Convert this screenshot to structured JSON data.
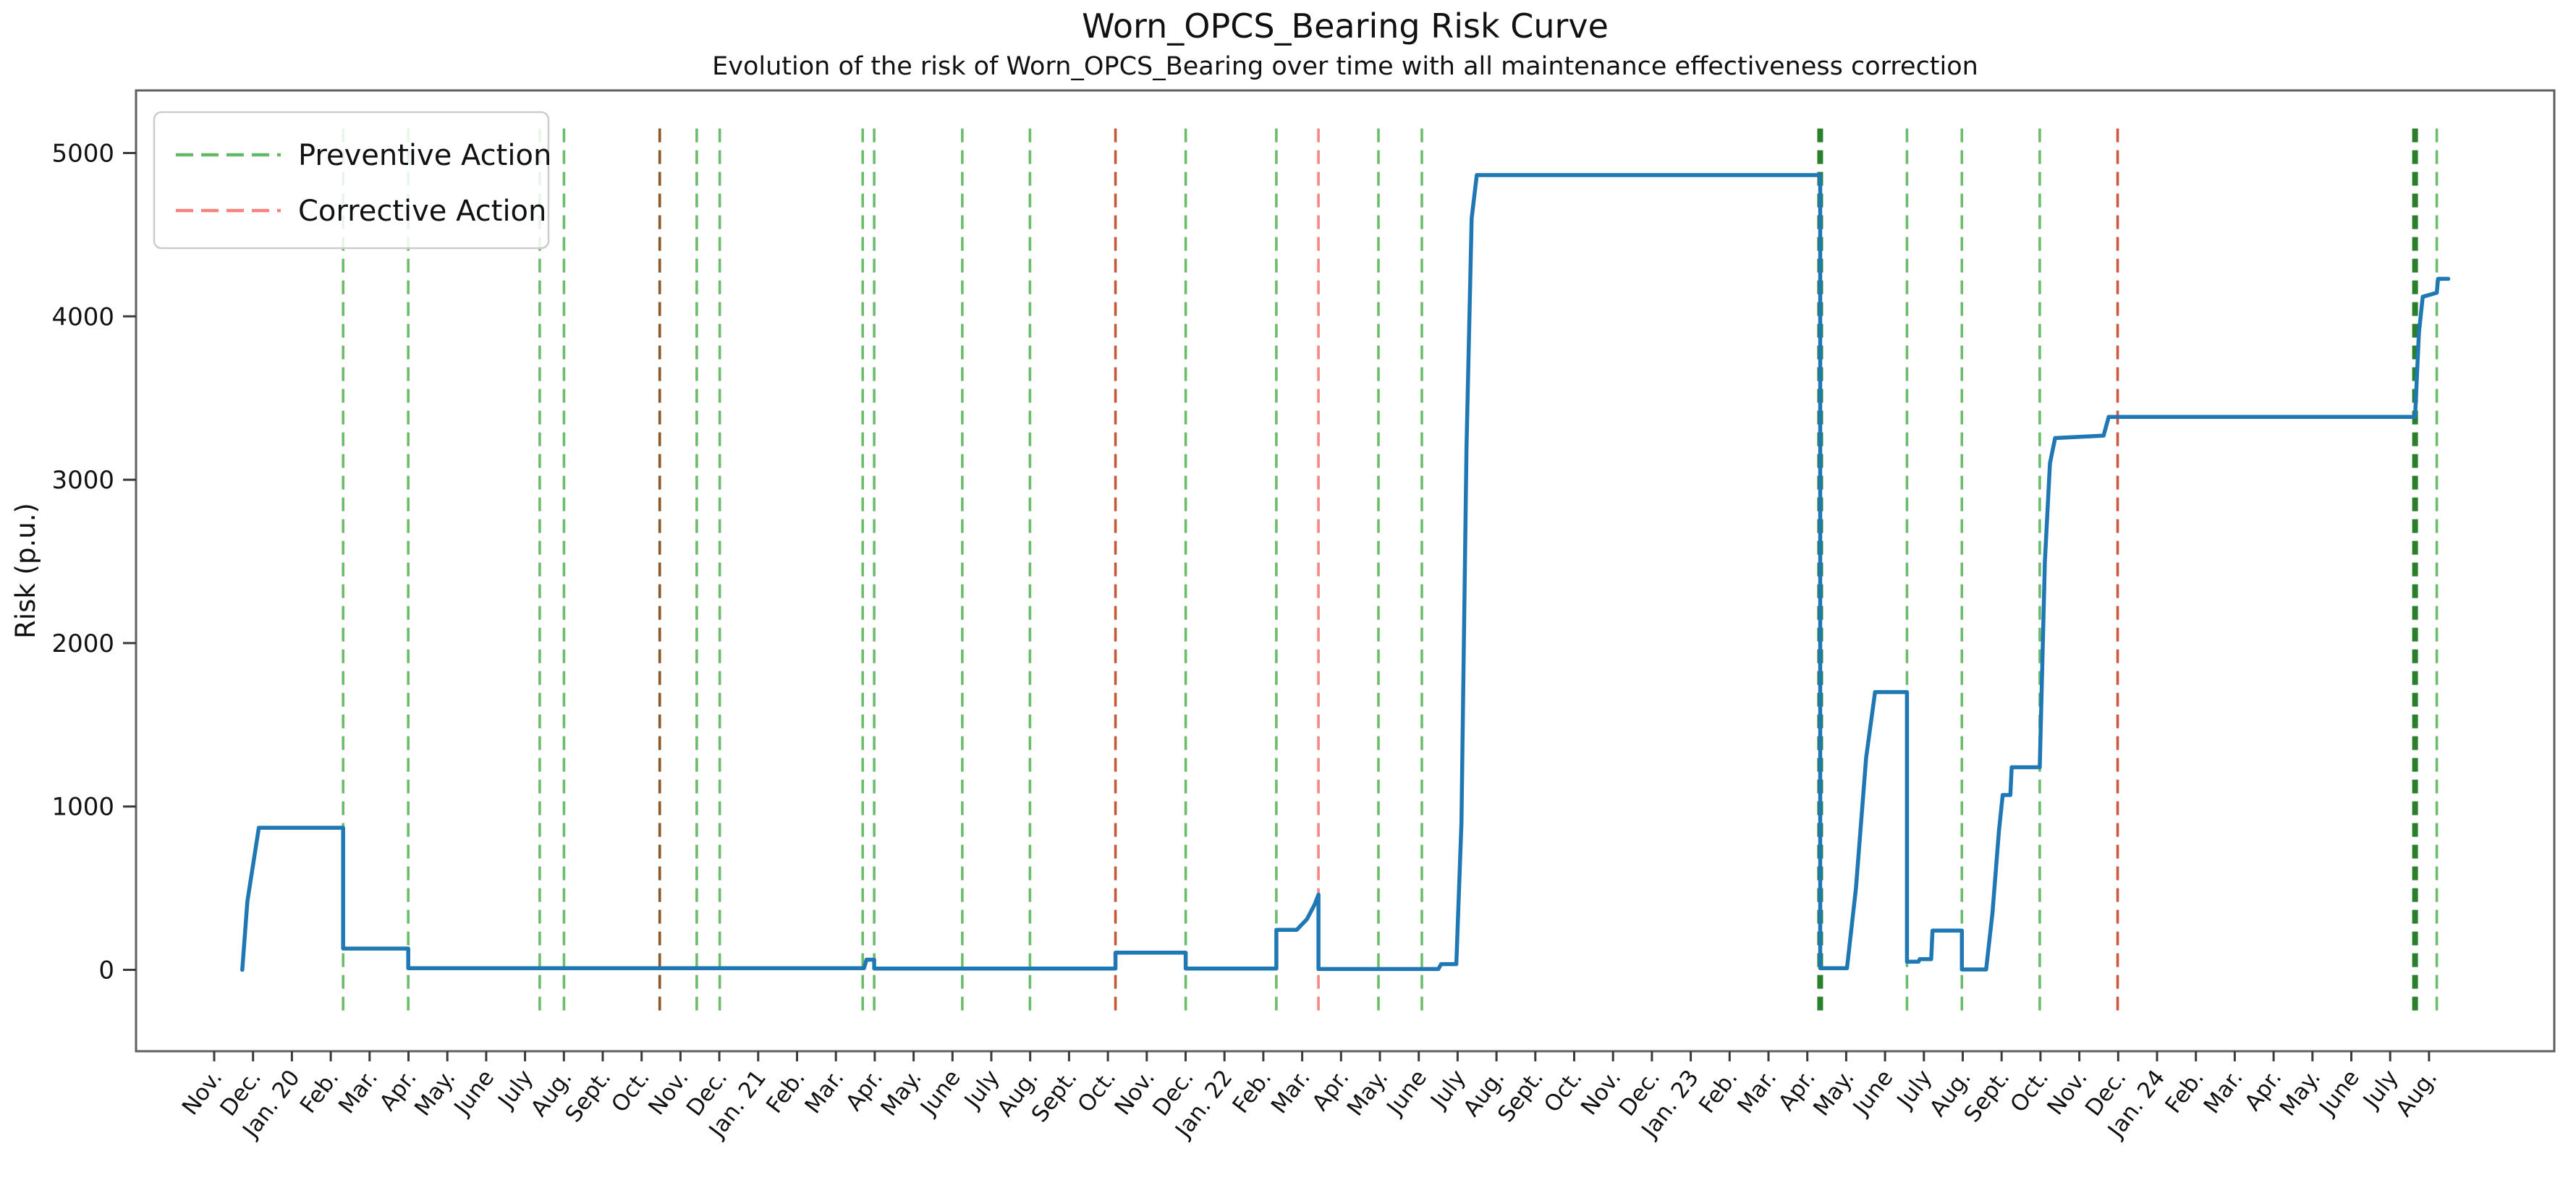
{
  "title": "Worn_OPCS_Bearing Risk Curve",
  "subtitle": "Evolution of the risk of Worn_OPCS_Bearing over time with all maintenance effectiveness correction",
  "y_axis": {
    "label": "Risk (p.u.)",
    "ticks": [
      0,
      1000,
      2000,
      3000,
      4000,
      5000
    ]
  },
  "x_axis": {
    "tick_labels": [
      "Nov.",
      "Dec.",
      "Jan. 20",
      "Feb.",
      "Mar.",
      "Apr.",
      "May.",
      "June",
      "July",
      "Aug.",
      "Sept.",
      "Oct.",
      "Nov.",
      "Dec.",
      "Jan. 21",
      "Feb.",
      "Mar.",
      "Apr.",
      "May.",
      "June",
      "July",
      "Aug.",
      "Sept.",
      "Oct.",
      "Nov.",
      "Dec.",
      "Jan. 22",
      "Feb.",
      "Mar.",
      "Apr.",
      "May.",
      "June",
      "July",
      "Aug.",
      "Sept.",
      "Oct.",
      "Nov.",
      "Dec.",
      "Jan. 23",
      "Feb.",
      "Mar.",
      "Apr.",
      "May.",
      "June",
      "July",
      "Aug.",
      "Sept.",
      "Oct.",
      "Nov.",
      "Dec.",
      "Jan. 24",
      "Feb.",
      "Mar.",
      "Apr.",
      "May.",
      "June",
      "July",
      "Aug."
    ]
  },
  "legend": {
    "items": [
      {
        "label": "Preventive Action",
        "color": "#64b964"
      },
      {
        "label": "Corrective Action",
        "color": "#f4827d"
      }
    ]
  },
  "chart_data": {
    "type": "line",
    "title": "Worn_OPCS_Bearing Risk Curve",
    "subtitle": "Evolution of the risk of Worn_OPCS_Bearing over time with all maintenance effectiveness correction",
    "xlabel": "",
    "ylabel": "Risk (p.u.)",
    "x_start": "2019-11-01",
    "xlim_months": [
      -2.03,
      60.32
    ],
    "ylim": [
      -500,
      5385
    ],
    "yticks": [
      0,
      1000,
      2000,
      3000,
      4000,
      5000
    ],
    "grid": false,
    "legend_position": "upper-left",
    "event_line_span_values": [
      -260,
      5150
    ],
    "series": [
      {
        "name": "Risk",
        "color": "#1f77b4",
        "points": [
          [
            "2019-11-23",
            0
          ],
          [
            "2019-11-27",
            420
          ],
          [
            "2019-12-06",
            870
          ],
          [
            "2020-02-10",
            870
          ],
          [
            "2020-02-10",
            130
          ],
          [
            "2020-04-01",
            130
          ],
          [
            "2020-04-01",
            10
          ],
          [
            "2021-03-24",
            10
          ],
          [
            "2021-03-26",
            62
          ],
          [
            "2021-04-01",
            62
          ],
          [
            "2021-04-01",
            8
          ],
          [
            "2021-10-07",
            8
          ],
          [
            "2021-10-07",
            105
          ],
          [
            "2021-12-01",
            105
          ],
          [
            "2021-12-01",
            8
          ],
          [
            "2022-02-10",
            8
          ],
          [
            "2022-02-10",
            245
          ],
          [
            "2022-02-26",
            245
          ],
          [
            "2022-03-06",
            310
          ],
          [
            "2022-03-12",
            400
          ],
          [
            "2022-03-15",
            460
          ],
          [
            "2022-03-15",
            5
          ],
          [
            "2022-06-17",
            5
          ],
          [
            "2022-06-19",
            35
          ],
          [
            "2022-07-01",
            35
          ],
          [
            "2022-07-05",
            900
          ],
          [
            "2022-07-09",
            3200
          ],
          [
            "2022-07-13",
            4600
          ],
          [
            "2022-07-17",
            4865
          ],
          [
            "2023-04-12",
            4865
          ],
          [
            "2023-04-12",
            10
          ],
          [
            "2023-05-03",
            10
          ],
          [
            "2023-05-10",
            500
          ],
          [
            "2023-05-18",
            1300
          ],
          [
            "2023-05-25",
            1700
          ],
          [
            "2023-06-19",
            1700
          ],
          [
            "2023-06-19",
            50
          ],
          [
            "2023-06-28",
            50
          ],
          [
            "2023-06-29",
            65
          ],
          [
            "2023-07-08",
            65
          ],
          [
            "2023-07-09",
            240
          ],
          [
            "2023-08-01",
            240
          ],
          [
            "2023-08-01",
            2
          ],
          [
            "2023-08-20",
            2
          ],
          [
            "2023-08-25",
            350
          ],
          [
            "2023-08-30",
            850
          ],
          [
            "2023-09-02",
            1070
          ],
          [
            "2023-09-08",
            1070
          ],
          [
            "2023-09-09",
            1240
          ],
          [
            "2023-10-01",
            1240
          ],
          [
            "2023-10-05",
            2500
          ],
          [
            "2023-10-09",
            3100
          ],
          [
            "2023-10-13",
            3255
          ],
          [
            "2023-11-20",
            3270
          ],
          [
            "2023-11-24",
            3385
          ],
          [
            "2024-07-21",
            3385
          ],
          [
            "2024-07-24",
            3900
          ],
          [
            "2024-07-27",
            4120
          ],
          [
            "2024-08-07",
            4145
          ],
          [
            "2024-08-08",
            4230
          ],
          [
            "2024-08-16",
            4230
          ]
        ]
      }
    ],
    "events": {
      "preventive": [
        {
          "date": "2020-02-10"
        },
        {
          "date": "2020-04-01"
        },
        {
          "date": "2020-07-13"
        },
        {
          "date": "2020-08-01"
        },
        {
          "date": "2020-10-15"
        },
        {
          "date": "2020-11-13"
        },
        {
          "date": "2020-12-01"
        },
        {
          "date": "2021-03-23"
        },
        {
          "date": "2021-04-01"
        },
        {
          "date": "2021-06-09"
        },
        {
          "date": "2021-08-01"
        },
        {
          "date": "2021-12-01"
        },
        {
          "date": "2022-02-10"
        },
        {
          "date": "2022-05-01"
        },
        {
          "date": "2022-06-04"
        },
        {
          "date": "2023-04-12",
          "emphasis": true
        },
        {
          "date": "2023-06-19"
        },
        {
          "date": "2023-08-01"
        },
        {
          "date": "2023-10-01"
        },
        {
          "date": "2024-07-21",
          "emphasis": true
        },
        {
          "date": "2024-08-07"
        }
      ],
      "corrective": [
        {
          "date": "2020-10-15",
          "color": "#8f5326"
        },
        {
          "date": "2021-10-07",
          "color": "#c2502e"
        },
        {
          "date": "2022-03-15"
        },
        {
          "date": "2023-12-01",
          "color": "#cc4f38"
        }
      ]
    },
    "colors": {
      "curve": "#1f77b4",
      "preventive": "#64b964",
      "preventive_emphasis": "#1f7a1f",
      "corrective": "#f4827d",
      "spine": "#5f5f5f"
    }
  }
}
